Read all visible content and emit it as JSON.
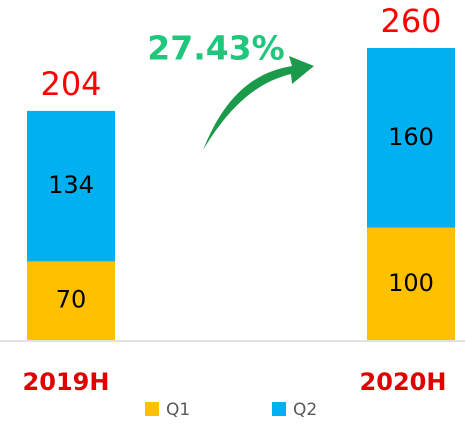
{
  "chart_data": {
    "type": "stacked_bar",
    "categories": [
      "2019H",
      "2020H"
    ],
    "series": [
      {
        "name": "Q1",
        "color": "#ffc000",
        "values": [
          70,
          100
        ]
      },
      {
        "name": "Q2",
        "color": "#00b0f0",
        "values": [
          134,
          160
        ]
      }
    ],
    "totals": [
      204,
      260
    ],
    "annotation": "27.43%",
    "ylim": [
      0,
      260
    ]
  }
}
